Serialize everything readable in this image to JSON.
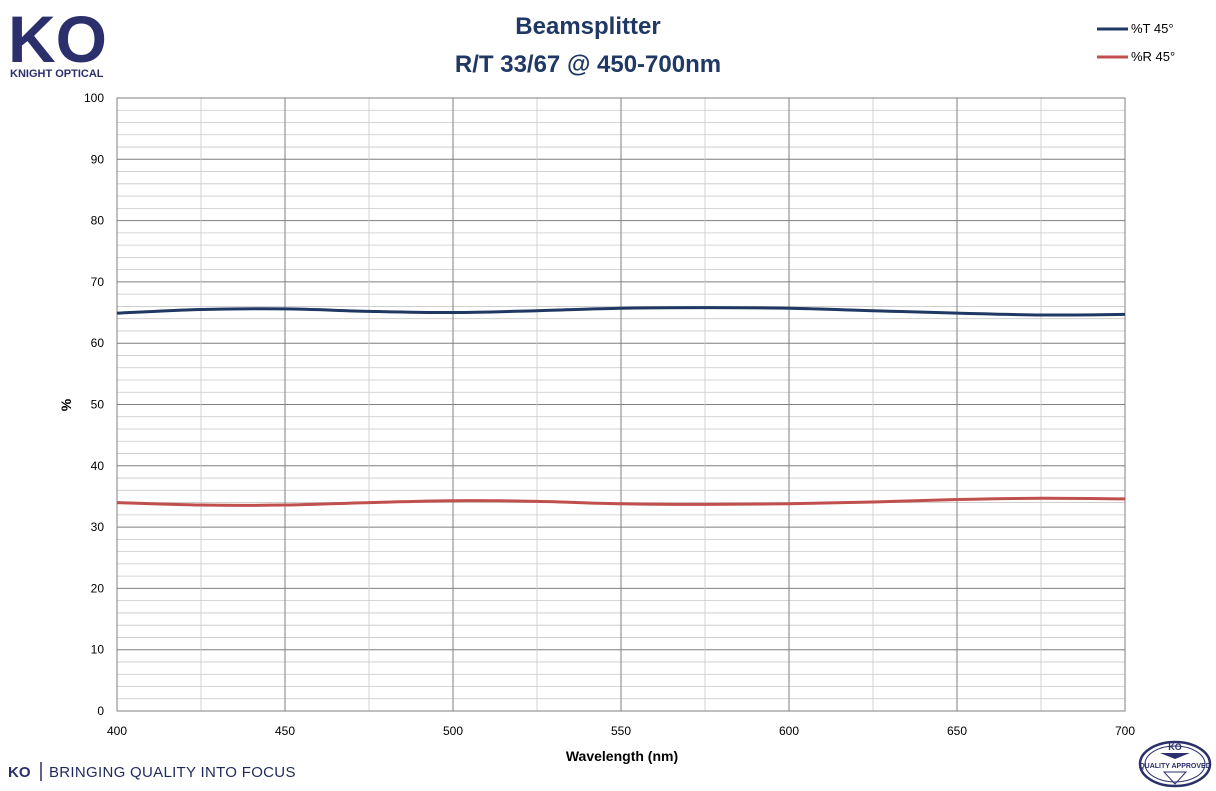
{
  "brand": {
    "logo_mark": "KO",
    "logo_name": "KNIGHT OPTICAL",
    "tagline_mark": "KO",
    "tagline": "BRINGING QUALITY INTO FOCUS",
    "badge_mark": "KO",
    "badge_text": "QUALITY APPROVED",
    "color": "#2b2f6b"
  },
  "chart_data": {
    "type": "line",
    "title": "Beamsplitter",
    "subtitle": "R/T 33/67 @ 450-700nm",
    "xlabel": "Wavelength (nm)",
    "ylabel": "%",
    "xlim": [
      400,
      700
    ],
    "ylim": [
      0,
      100
    ],
    "x_ticks": [
      400,
      450,
      500,
      550,
      600,
      650,
      700
    ],
    "y_ticks": [
      0,
      10,
      20,
      30,
      40,
      50,
      60,
      70,
      80,
      90,
      100
    ],
    "grid": true,
    "legend_position": "top-right",
    "series": [
      {
        "name": "%T 45°",
        "color": "#1f3864",
        "x": [
          400,
          425,
          450,
          475,
          500,
          525,
          550,
          575,
          600,
          625,
          650,
          675,
          700
        ],
        "y": [
          64.9,
          65.5,
          65.6,
          65.2,
          65.0,
          65.3,
          65.7,
          65.8,
          65.7,
          65.3,
          64.9,
          64.6,
          64.7
        ]
      },
      {
        "name": "%R 45°",
        "color": "#c0504d",
        "x": [
          400,
          425,
          450,
          475,
          500,
          525,
          550,
          575,
          600,
          625,
          650,
          675,
          700
        ],
        "y": [
          34.0,
          33.6,
          33.6,
          34.0,
          34.3,
          34.2,
          33.8,
          33.7,
          33.8,
          34.1,
          34.5,
          34.7,
          34.6
        ]
      }
    ]
  }
}
